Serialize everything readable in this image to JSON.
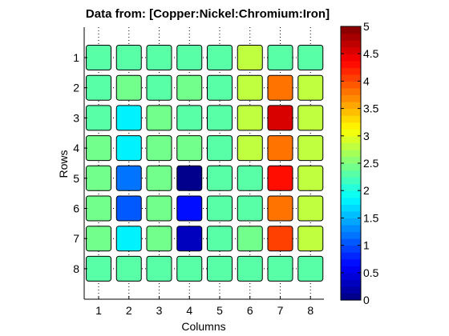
{
  "chart_data": {
    "type": "heatmap",
    "title": "Data from: [Copper:Nickel:Chromium:Iron]",
    "xlabel": "Columns",
    "ylabel": "Rows",
    "columns": [
      "1",
      "2",
      "3",
      "4",
      "5",
      "6",
      "7",
      "8"
    ],
    "rows": [
      "1",
      "2",
      "3",
      "4",
      "5",
      "6",
      "7",
      "8"
    ],
    "values": [
      [
        2.3,
        2.3,
        2.3,
        2.3,
        2.3,
        2.75,
        2.3,
        2.3
      ],
      [
        2.3,
        2.45,
        2.3,
        2.4,
        2.3,
        2.75,
        3.75,
        2.75
      ],
      [
        2.3,
        1.85,
        2.4,
        2.3,
        2.3,
        2.75,
        4.5,
        2.75
      ],
      [
        2.4,
        1.85,
        2.4,
        2.4,
        2.3,
        2.75,
        3.85,
        2.75
      ],
      [
        2.4,
        1.2,
        2.45,
        0.05,
        2.3,
        2.3,
        4.3,
        2.75
      ],
      [
        2.4,
        1.1,
        2.4,
        0.65,
        2.3,
        2.3,
        3.85,
        2.75
      ],
      [
        2.4,
        1.85,
        2.4,
        0.35,
        2.3,
        2.4,
        4.1,
        2.75
      ],
      [
        2.3,
        2.3,
        2.3,
        2.3,
        2.3,
        2.3,
        2.3,
        2.3
      ]
    ],
    "colorbar": {
      "range": [
        0,
        5
      ],
      "ticks": [
        "0",
        "0.5",
        "1",
        "1.5",
        "2",
        "2.5",
        "3",
        "3.5",
        "4",
        "4.5",
        "5"
      ],
      "colormap": "jet"
    },
    "grid": "dotted"
  }
}
